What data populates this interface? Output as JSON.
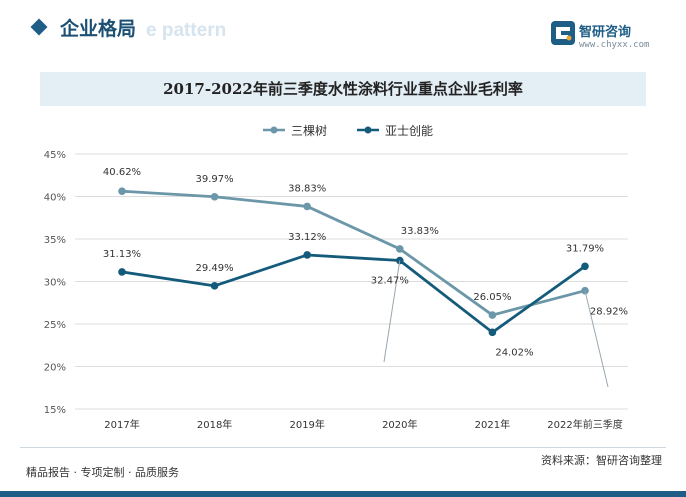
{
  "header": {
    "section_title": "企业格局",
    "section_subtitle": "e pattern",
    "logo_name": "智研咨询",
    "logo_url": "www.chyxx.com"
  },
  "chart_title": "2017-2022年前三季度水性涂料行业重点企业毛利率",
  "chart_data": {
    "type": "line",
    "title": "2017-2022年前三季度水性涂料行业重点企业毛利率",
    "categories": [
      "2017年",
      "2018年",
      "2019年",
      "2020年",
      "2021年",
      "2022年前三季度"
    ],
    "ylim": [
      15,
      45
    ],
    "yticks": [
      15,
      20,
      25,
      30,
      35,
      40,
      45
    ],
    "ytick_labels": [
      "15%",
      "20%",
      "25%",
      "30%",
      "35%",
      "40%",
      "45%"
    ],
    "grid": true,
    "legend_position": "top",
    "series": [
      {
        "name": "三棵树",
        "color": "#6b97a8",
        "values": [
          40.62,
          39.97,
          38.83,
          33.83,
          26.05,
          28.92
        ],
        "labels": [
          "40.62%",
          "39.97%",
          "38.83%",
          "33.83%",
          "26.05%",
          "28.92%"
        ]
      },
      {
        "name": "亚士创能",
        "color": "#145a7a",
        "values": [
          31.13,
          29.49,
          33.12,
          32.47,
          24.02,
          31.79
        ],
        "labels": [
          "31.13%",
          "29.49%",
          "33.12%",
          "32.47%",
          "24.02%",
          "31.79%"
        ]
      }
    ]
  },
  "footer": {
    "left_items": [
      "精品报告",
      "专项定制",
      "品质服务"
    ],
    "left_separator": "·",
    "source_text": "资料来源：智研咨询整理"
  }
}
